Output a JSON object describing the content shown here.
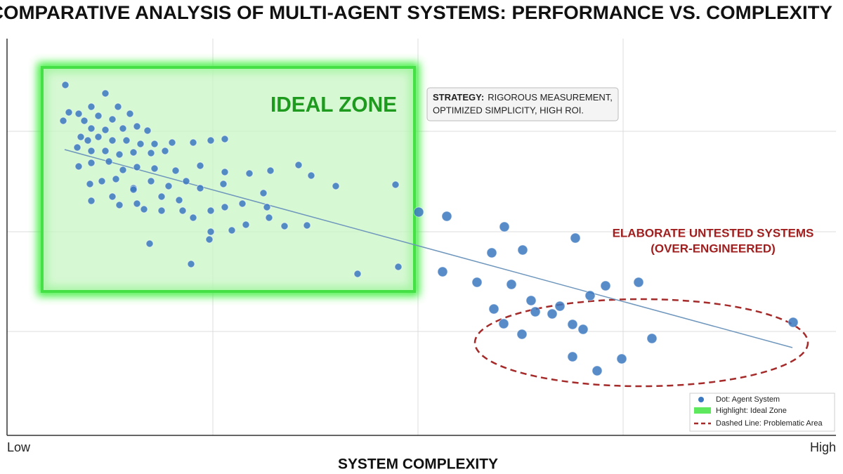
{
  "chart_data": {
    "type": "scatter",
    "title": "COMPARATIVE ANALYSIS OF MULTI-AGENT SYSTEMS: PERFORMANCE VS. COMPLEXITY",
    "x_label": "SYSTEM COMPLEXITY",
    "xlim": [
      0,
      1180
    ],
    "ylim": [
      0,
      565
    ],
    "xticks": [
      {
        "value": 0,
        "label": "Low"
      },
      {
        "value": 1180,
        "label": "High"
      }
    ],
    "color": "#3b78c0",
    "x": [
      83,
      88,
      102,
      120,
      140,
      158,
      80,
      110,
      130,
      150,
      175,
      120,
      140,
      165,
      185,
      200,
      105,
      115,
      130,
      150,
      170,
      190,
      210,
      235,
      100,
      120,
      140,
      160,
      180,
      205,
      225,
      265,
      290,
      310,
      102,
      120,
      145,
      165,
      185,
      210,
      240,
      275,
      310,
      345,
      375,
      415,
      433,
      118,
      135,
      155,
      180,
      205,
      230,
      255,
      275,
      308,
      120,
      150,
      180,
      195,
      220,
      245,
      265,
      290,
      310,
      335,
      365,
      370,
      468,
      553,
      160,
      185,
      220,
      250,
      290,
      320,
      340,
      373,
      395,
      427,
      288,
      203,
      262,
      499,
      557,
      586,
      626,
      708,
      690,
      734,
      809,
      620,
      669,
      718,
      746,
      830,
      852,
      899,
      693,
      752,
      787,
      776,
      707,
      805,
      820,
      733,
      918,
      1119,
      805,
      875,
      840
    ],
    "y": [
      499,
      460,
      458,
      468,
      487,
      468,
      448,
      448,
      455,
      450,
      458,
      437,
      435,
      437,
      440,
      434,
      425,
      420,
      425,
      420,
      420,
      415,
      415,
      417,
      410,
      405,
      405,
      400,
      403,
      402,
      405,
      417,
      420,
      422,
      383,
      388,
      390,
      378,
      382,
      380,
      377,
      384,
      375,
      373,
      377,
      385,
      370,
      358,
      362,
      365,
      352,
      362,
      355,
      362,
      352,
      358,
      334,
      340,
      350,
      322,
      340,
      335,
      310,
      320,
      325,
      330,
      345,
      325,
      355,
      357,
      328,
      330,
      320,
      320,
      290,
      292,
      300,
      310,
      298,
      299,
      279,
      273,
      244,
      230,
      240,
      318,
      312,
      297,
      260,
      264,
      281,
      233,
      218,
      215,
      192,
      199,
      213,
      218,
      180,
      176,
      184,
      173,
      159,
      158,
      151,
      144,
      138,
      161,
      112,
      109,
      92
    ],
    "trend_line": {
      "x": [
        82,
        1118
      ],
      "y": [
        407,
        125
      ],
      "color": "#6f97bd"
    },
    "annotations": {
      "ideal_zone": "IDEAL ZONE",
      "strategy_label": "STRATEGY:",
      "strategy_lines": [
        "RIGOROUS MEASUREMENT,",
        "OPTIMIZED SIMPLICITY, HIGH ROI."
      ],
      "elaborate_lines": [
        "ELABORATE UNTESTED SYSTEMS",
        "(OVER-ENGINEERED)"
      ]
    },
    "legend": {
      "position": "lower right",
      "entries": [
        "Dot: Agent System",
        "Highlight: Ideal Zone",
        "Dashed Line: Problematic Area"
      ]
    }
  }
}
